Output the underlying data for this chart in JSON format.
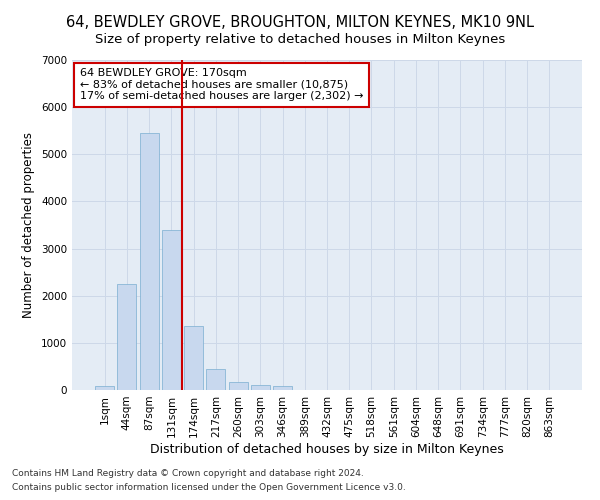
{
  "title1": "64, BEWDLEY GROVE, BROUGHTON, MILTON KEYNES, MK10 9NL",
  "title2": "Size of property relative to detached houses in Milton Keynes",
  "xlabel": "Distribution of detached houses by size in Milton Keynes",
  "ylabel": "Number of detached properties",
  "footer1": "Contains HM Land Registry data © Crown copyright and database right 2024.",
  "footer2": "Contains public sector information licensed under the Open Government Licence v3.0.",
  "bar_labels": [
    "1sqm",
    "44sqm",
    "87sqm",
    "131sqm",
    "174sqm",
    "217sqm",
    "260sqm",
    "303sqm",
    "346sqm",
    "389sqm",
    "432sqm",
    "475sqm",
    "518sqm",
    "561sqm",
    "604sqm",
    "648sqm",
    "691sqm",
    "734sqm",
    "777sqm",
    "820sqm",
    "863sqm"
  ],
  "bar_values": [
    75,
    2250,
    5450,
    3400,
    1350,
    450,
    175,
    100,
    75,
    5,
    5,
    2,
    1,
    0,
    0,
    0,
    0,
    0,
    0,
    0,
    0
  ],
  "bar_color": "#c8d8ee",
  "bar_edge_color": "#7aaed0",
  "vline_color": "#cc0000",
  "annotation_text": "64 BEWDLEY GROVE: 170sqm\n← 83% of detached houses are smaller (10,875)\n17% of semi-detached houses are larger (2,302) →",
  "annotation_box_color": "#cc0000",
  "ylim": [
    0,
    7000
  ],
  "yticks": [
    0,
    1000,
    2000,
    3000,
    4000,
    5000,
    6000,
    7000
  ],
  "grid_color": "#cdd8e8",
  "bg_color": "#e4ecf5",
  "title1_fontsize": 10.5,
  "title2_fontsize": 9.5,
  "xlabel_fontsize": 9,
  "ylabel_fontsize": 8.5,
  "tick_fontsize": 7.5,
  "footer_fontsize": 6.5
}
